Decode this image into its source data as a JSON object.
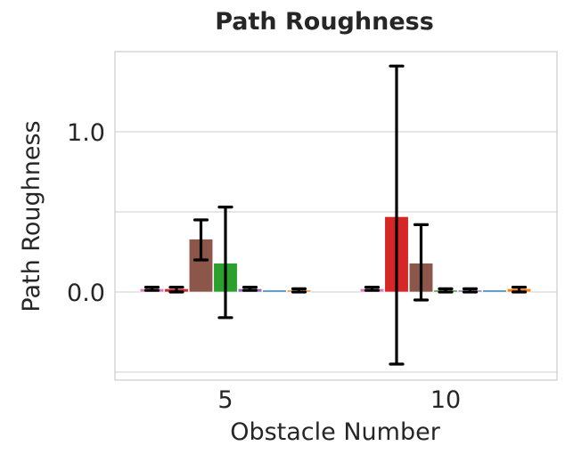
{
  "chart_data": {
    "type": "bar",
    "title": "Path Roughness",
    "xlabel": "Obstacle Number",
    "ylabel": "Path Roughness",
    "categories": [
      "5",
      "10"
    ],
    "yticks": [
      0.0,
      1.0
    ],
    "ytick_labels": [
      "0.0",
      "1.0"
    ],
    "ylim": [
      -0.55,
      1.5
    ],
    "grid": true,
    "legend": "none",
    "series_colors": [
      "#e377c2",
      "#d62728",
      "#8c564b",
      "#2ca02c",
      "#9467bd",
      "#1f77b4",
      "#ff7f0e"
    ],
    "series": [
      {
        "values": [
          0.02,
          0.02
        ],
        "err_low": [
          0.01,
          0.01
        ],
        "err_high": [
          0.03,
          0.03
        ]
      },
      {
        "values": [
          0.02,
          0.47
        ],
        "err_low": [
          0.0,
          -0.45
        ],
        "err_high": [
          0.03,
          1.41
        ]
      },
      {
        "values": [
          0.33,
          0.18
        ],
        "err_low": [
          0.2,
          -0.05
        ],
        "err_high": [
          0.45,
          0.42
        ]
      },
      {
        "values": [
          0.18,
          0.01
        ],
        "err_low": [
          -0.16,
          0.0
        ],
        "err_high": [
          0.53,
          0.02
        ]
      },
      {
        "values": [
          0.02,
          0.01
        ],
        "err_low": [
          0.01,
          0.0
        ],
        "err_high": [
          0.03,
          0.02
        ]
      },
      {
        "values": [
          0.01,
          0.01
        ],
        "err_low": null,
        "err_high": null
      },
      {
        "values": [
          0.01,
          0.02
        ],
        "err_low": [
          0.0,
          0.0
        ],
        "err_high": [
          0.02,
          0.03
        ]
      }
    ],
    "error_bars": [
      [
        true,
        true
      ],
      [
        true,
        true
      ],
      [
        true,
        true
      ],
      [
        true,
        true
      ],
      [
        true,
        true
      ],
      [
        false,
        false
      ],
      [
        true,
        true
      ]
    ]
  }
}
